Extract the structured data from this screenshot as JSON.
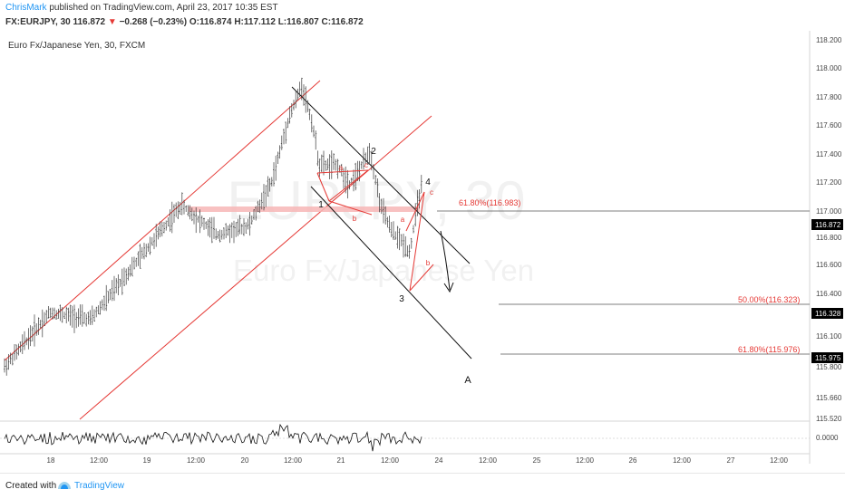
{
  "header": {
    "author": "ChrisMark",
    "published": "published on TradingView.com, April 23, 2017 10:35 EST",
    "symbol": "FX:EURJPY, 30",
    "last": "116.872",
    "down_arrow": "▼",
    "change": "−0.268 (−0.23%)",
    "ohlc": "O:116.874 H:117.112 L:116.807 C:116.872"
  },
  "instrument_title": "Euro Fx/Japanese Yen, 30, FXCM",
  "watermark": {
    "symbol": "EURJPY, 30",
    "name": "Euro Fx/Japanese Yen"
  },
  "footer": {
    "created": "Created with",
    "brand": "TradingView"
  },
  "colors": {
    "channel": "#e53935",
    "bars": "#3a3a3a",
    "fib_red": "#e53935",
    "price_box": "#000000"
  },
  "chart_data": {
    "type": "bar",
    "subtype": "ohlc-price-chart-with-oscillator",
    "y_axis": {
      "ticks": [
        "118.200",
        "118.000",
        "117.800",
        "117.600",
        "117.400",
        "117.200",
        "117.000",
        "116.800",
        "116.600",
        "116.400",
        "116.100",
        "115.800",
        "115.660",
        "115.520"
      ]
    },
    "x_axis": {
      "ticks": [
        "18",
        "12:00",
        "19",
        "12:00",
        "20",
        "12:00",
        "21",
        "12:00",
        "24",
        "12:00",
        "25",
        "12:00",
        "26",
        "12:00",
        "27",
        "12:00"
      ]
    },
    "price_labels": [
      {
        "value": "116.872",
        "type": "last"
      },
      {
        "value": "116.328",
        "type": "marker"
      },
      {
        "value": "115.975",
        "type": "marker"
      }
    ],
    "fib_levels": [
      {
        "label": "61.80%(116.983)",
        "value": 116.983,
        "color": "#e53935"
      },
      {
        "label": "50.00%(116.323)",
        "value": 116.323,
        "color": "#e53935"
      },
      {
        "label": "61.80%(115.976)",
        "value": 115.976,
        "color": "#e53935"
      }
    ],
    "wave_labels": [
      "1",
      "2",
      "3",
      "4",
      "A"
    ],
    "sub_wave_labels": [
      "a",
      "b",
      "c",
      "a",
      "b",
      "c"
    ],
    "oscillator": {
      "tick": "0.0000"
    }
  }
}
